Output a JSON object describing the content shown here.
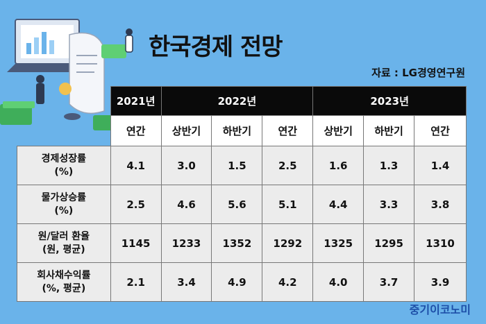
{
  "title": "한국경제 전망",
  "source": "자료 : LG경영연구원",
  "brand": "중기이코노미",
  "table": {
    "years": [
      "2021년",
      "2022년",
      "2023년"
    ],
    "periods": [
      "연간",
      "상반기",
      "하반기",
      "연간",
      "상반기",
      "하반기",
      "연간"
    ],
    "rows": [
      {
        "label1": "경제성장률",
        "label2": "(%)",
        "values": [
          "4.1",
          "3.0",
          "1.5",
          "2.5",
          "1.6",
          "1.3",
          "1.4"
        ]
      },
      {
        "label1": "물가상승률",
        "label2": "(%)",
        "values": [
          "2.5",
          "4.6",
          "5.6",
          "5.1",
          "4.4",
          "3.3",
          "3.8"
        ]
      },
      {
        "label1": "원/달러 환율",
        "label2": "(원, 평균)",
        "values": [
          "1145",
          "1233",
          "1352",
          "1292",
          "1325",
          "1295",
          "1310"
        ]
      },
      {
        "label1": "회사채수익률",
        "label2": "(%, 평균)",
        "values": [
          "2.1",
          "3.4",
          "4.9",
          "4.2",
          "4.0",
          "3.7",
          "3.9"
        ]
      }
    ]
  },
  "colors": {
    "background": "#6ab3ea",
    "header_dark": "#0a0a0a",
    "cell": "#ececec",
    "brand": "#1d4fa8"
  }
}
